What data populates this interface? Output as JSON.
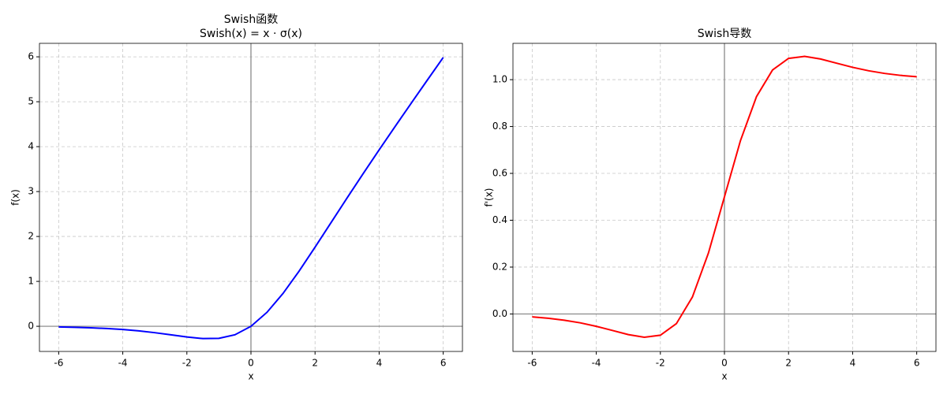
{
  "chart_data": [
    {
      "type": "line",
      "title": [
        "Swish函数",
        "Swish(x) = x · σ(x)"
      ],
      "xlabel": "x",
      "ylabel": "f(x)",
      "x": [
        -6,
        -5.5,
        -5,
        -4.5,
        -4,
        -3.5,
        -3,
        -2.5,
        -2,
        -1.5,
        -1,
        -0.5,
        0,
        0.5,
        1,
        1.5,
        2,
        2.5,
        3,
        3.5,
        4,
        4.5,
        5,
        5.5,
        6
      ],
      "series": [
        {
          "color": "#0000ff",
          "values": [
            -0.0148,
            -0.0224,
            -0.0335,
            -0.0494,
            -0.0719,
            -0.1026,
            -0.1423,
            -0.1896,
            -0.2384,
            -0.2736,
            -0.2689,
            -0.1888,
            0,
            0.3112,
            0.7311,
            1.2264,
            1.7616,
            2.3104,
            2.8577,
            3.3974,
            3.9281,
            4.4506,
            4.9665,
            5.4776,
            5.9852
          ]
        }
      ],
      "xlim": [
        -6.6,
        6.6
      ],
      "ylim": [
        -0.56,
        6.3
      ],
      "xticks": [
        -6,
        -4,
        -2,
        0,
        2,
        4,
        6
      ],
      "yticks": [
        0,
        1,
        2,
        3,
        4,
        5,
        6
      ],
      "grid": true,
      "hline": 0,
      "vline": 0
    },
    {
      "type": "line",
      "title": [
        "Swish导数"
      ],
      "xlabel": "x",
      "ylabel": "f'(x)",
      "x": [
        -6,
        -5.5,
        -5,
        -4.5,
        -4,
        -3.5,
        -3,
        -2.5,
        -2,
        -1.5,
        -1,
        -0.5,
        0,
        0.5,
        1,
        1.5,
        2,
        2.5,
        3,
        3.5,
        4,
        4.5,
        5,
        5.5,
        6
      ],
      "series": [
        {
          "color": "#ff0000",
          "values": [
            -0.0123,
            -0.0182,
            -0.0266,
            -0.0379,
            -0.0527,
            -0.0703,
            -0.0881,
            -0.0994,
            -0.0908,
            -0.0413,
            0.0723,
            0.2601,
            0.5,
            0.74,
            0.9277,
            1.0413,
            1.0908,
            1.0994,
            1.0881,
            1.0703,
            1.0527,
            1.0379,
            1.0266,
            1.0182,
            1.0123
          ]
        }
      ],
      "xlim": [
        -6.6,
        6.6
      ],
      "ylim": [
        -0.16,
        1.155
      ],
      "xticks": [
        -6,
        -4,
        -2,
        0,
        2,
        4,
        6
      ],
      "yticks": [
        {
          "value": 0,
          "label": "0.0"
        },
        0.2,
        0.4,
        0.6,
        0.8,
        {
          "value": 1,
          "label": "1.0"
        }
      ],
      "grid": true,
      "hline": 0,
      "vline": 0
    }
  ]
}
